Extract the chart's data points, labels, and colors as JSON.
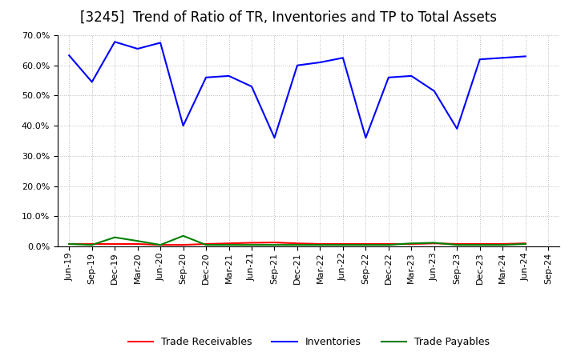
{
  "title": "[3245]  Trend of Ratio of TR, Inventories and TP to Total Assets",
  "x_labels": [
    "Jun-19",
    "Sep-19",
    "Dec-19",
    "Mar-20",
    "Jun-20",
    "Sep-20",
    "Dec-20",
    "Mar-21",
    "Jun-21",
    "Sep-21",
    "Dec-21",
    "Mar-22",
    "Jun-22",
    "Sep-22",
    "Dec-22",
    "Mar-23",
    "Jun-23",
    "Sep-23",
    "Dec-23",
    "Mar-24",
    "Jun-24",
    "Sep-24"
  ],
  "inventories": [
    0.633,
    0.545,
    0.678,
    0.655,
    0.675,
    0.4,
    0.56,
    0.565,
    0.53,
    0.36,
    0.6,
    0.61,
    0.625,
    0.36,
    0.56,
    0.565,
    0.515,
    0.39,
    0.62,
    0.625,
    0.63,
    null
  ],
  "trade_receivables": [
    0.008,
    0.008,
    0.008,
    0.008,
    0.005,
    0.005,
    0.008,
    0.01,
    0.012,
    0.013,
    0.01,
    0.008,
    0.008,
    0.008,
    0.008,
    0.008,
    0.01,
    0.008,
    0.008,
    0.008,
    0.01,
    null
  ],
  "trade_payables": [
    0.008,
    0.005,
    0.03,
    0.018,
    0.005,
    0.035,
    0.005,
    0.005,
    0.005,
    0.005,
    0.005,
    0.005,
    0.005,
    0.005,
    0.005,
    0.01,
    0.012,
    0.005,
    0.005,
    0.005,
    0.008,
    null
  ],
  "ylim": [
    0.0,
    0.7
  ],
  "yticks": [
    0.0,
    0.1,
    0.2,
    0.3,
    0.4,
    0.5,
    0.6,
    0.7
  ],
  "color_inventories": "#0000FF",
  "color_trade_receivables": "#FF0000",
  "color_trade_payables": "#008000",
  "background_color": "#FFFFFF",
  "plot_bg_color": "#FFFFFF",
  "grid_color": "#BBBBBB",
  "title_fontsize": 12,
  "legend_fontsize": 9,
  "tick_fontsize": 8
}
